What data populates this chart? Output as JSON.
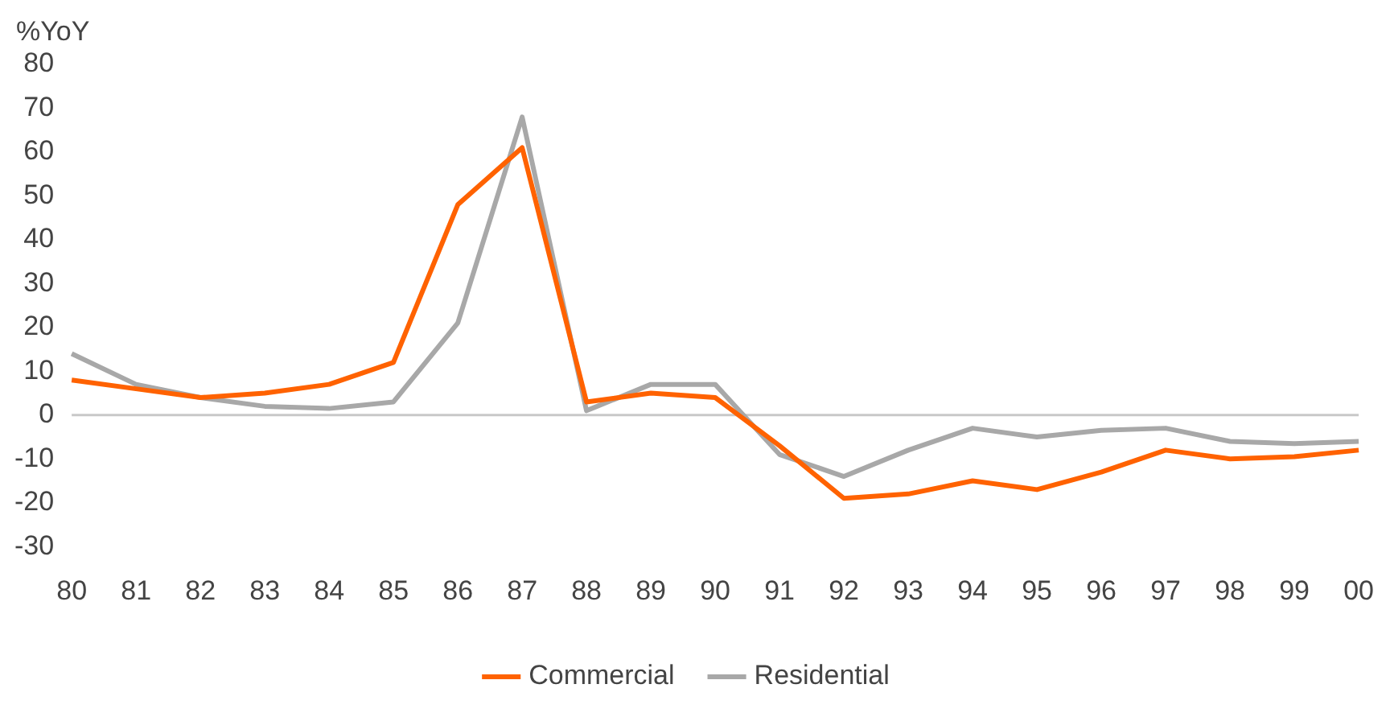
{
  "chart_data": {
    "type": "line",
    "ylabel": "%YoY",
    "categories": [
      "80",
      "81",
      "82",
      "83",
      "84",
      "85",
      "86",
      "87",
      "88",
      "89",
      "90",
      "91",
      "92",
      "93",
      "94",
      "95",
      "96",
      "97",
      "98",
      "99",
      "00"
    ],
    "series": [
      {
        "name": "Commercial",
        "color": "#ff6200",
        "values": [
          8,
          6,
          4,
          5,
          7,
          12,
          48,
          61,
          3,
          5,
          4,
          -7,
          -19,
          -18,
          -15,
          -17,
          -13,
          -8,
          -10,
          -9.5,
          -8
        ]
      },
      {
        "name": "Residential",
        "color": "#a8a8a8",
        "values": [
          14,
          7,
          4,
          2,
          1.5,
          3,
          21,
          68,
          1,
          7,
          7,
          -9,
          -14,
          -8,
          -3,
          -5,
          -3.5,
          -3,
          -6,
          -6.5,
          -6
        ]
      }
    ],
    "ylim": [
      -30,
      80
    ],
    "yticks": [
      -30,
      -20,
      -10,
      0,
      10,
      20,
      30,
      40,
      50,
      60,
      70,
      80
    ],
    "grid": false,
    "legend": "bottom",
    "marker": "none",
    "line_style": "solid",
    "ref_lines": [
      {
        "axis": "y",
        "value": 0,
        "color": "#c8c8c8"
      }
    ]
  }
}
